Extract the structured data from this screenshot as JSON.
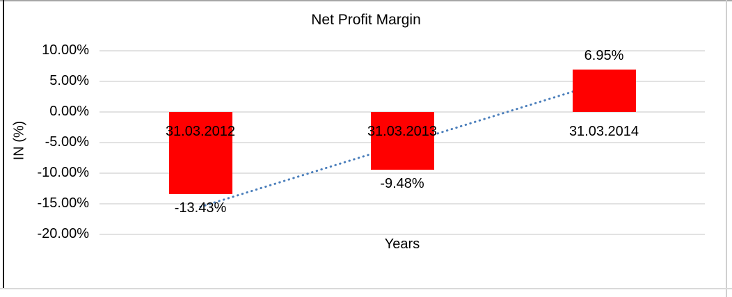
{
  "chart_data": {
    "type": "bar",
    "title": "Net Profit Margin",
    "xlabel": "Years",
    "ylabel": "IN (%)",
    "categories": [
      "31.03.2012",
      "31.03.2013",
      "31.03.2014"
    ],
    "values": [
      -13.43,
      -9.48,
      6.95
    ],
    "value_labels": [
      "-13.43%",
      "-9.48%",
      "6.95%"
    ],
    "ylim": [
      -20,
      10
    ],
    "ytick_values": [
      10,
      5,
      0,
      -5,
      -10,
      -15,
      -20
    ],
    "ytick_labels": [
      "10.00%",
      "5.00%",
      "0.00%",
      "-5.00%",
      "-10.00%",
      "-15.00%",
      "-20.00%"
    ],
    "grid": true,
    "legend": "none",
    "bar_color": "#ff0000",
    "gridline_color": "#d9d9d9",
    "trendline": {
      "type": "linear",
      "style": "dotted",
      "color": "#4a7ebb",
      "endpoint_values": [
        -15.5,
        4.9
      ]
    }
  }
}
